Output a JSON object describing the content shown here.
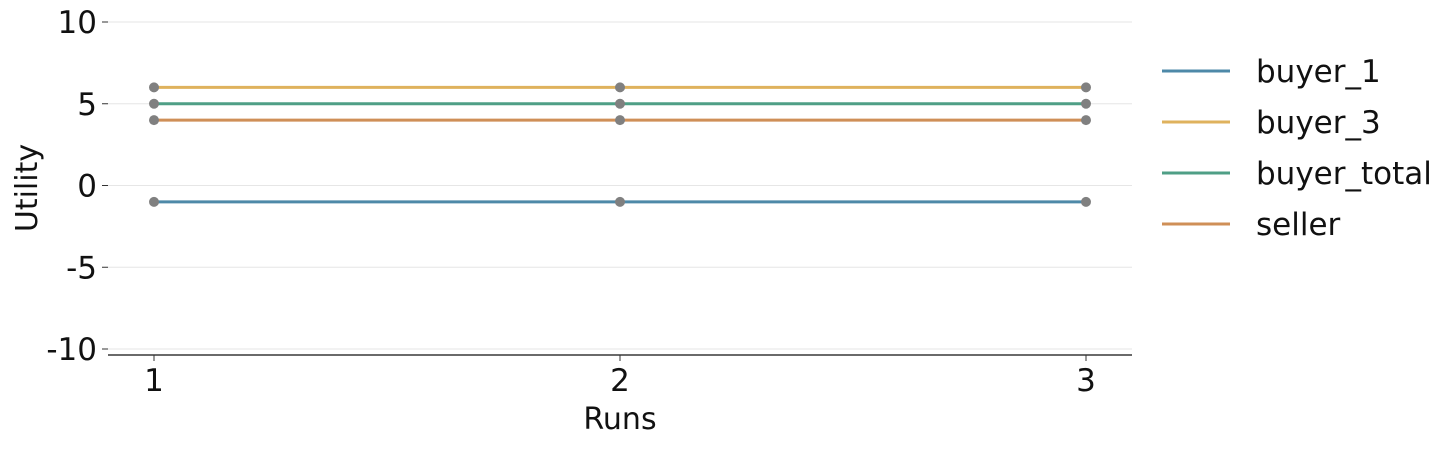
{
  "chart_data": {
    "type": "line",
    "xlabel": "Runs",
    "ylabel": "Utility",
    "x": [
      1,
      2,
      3
    ],
    "x_ticks": [
      "1",
      "2",
      "3"
    ],
    "ylim": [
      -10,
      10
    ],
    "y_ticks": [
      10,
      5,
      0,
      -5,
      -10
    ],
    "y_tick_labels": [
      "10",
      "5",
      "0",
      "-5",
      "-10"
    ],
    "grid": "horizontal",
    "legend_position": "right",
    "marker_color": "#808080",
    "series": [
      {
        "name": "buyer_1",
        "values": [
          -1,
          -1,
          -1
        ],
        "color": "#4e89a8"
      },
      {
        "name": "buyer_3",
        "values": [
          6,
          6,
          6
        ],
        "color": "#dfb25d"
      },
      {
        "name": "buyer_total",
        "values": [
          5,
          5,
          5
        ],
        "color": "#4f9f86"
      },
      {
        "name": "seller",
        "values": [
          4,
          4,
          4
        ],
        "color": "#cf8f57"
      }
    ]
  }
}
